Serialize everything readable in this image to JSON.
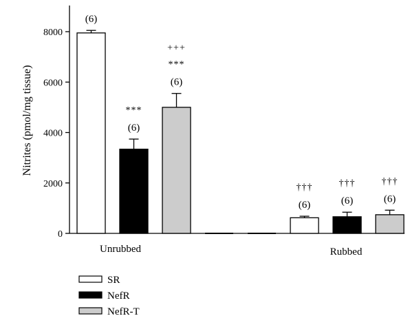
{
  "chart_data": {
    "type": "bar",
    "ylabel": "Nitrites (pmol/mg tissue)",
    "ylim": [
      0,
      10000
    ],
    "yticks": [
      0,
      2000,
      4000,
      6000,
      8000
    ],
    "groups": [
      "Unrubbed",
      "Rubbed"
    ],
    "series": [
      {
        "name": "SR",
        "color": "#ffffff"
      },
      {
        "name": "NefR",
        "color": "#000000"
      },
      {
        "name": "NefR-T",
        "color": "#cccccc"
      }
    ],
    "bars": [
      {
        "group": "Unrubbed",
        "series": "SR",
        "value": 7950,
        "error": 100,
        "n": "(6)",
        "marks": []
      },
      {
        "group": "Unrubbed",
        "series": "NefR",
        "value": 3340,
        "error": 400,
        "n": "(6)",
        "marks": [
          "***"
        ]
      },
      {
        "group": "Unrubbed",
        "series": "NefR-T",
        "value": 5000,
        "error": 550,
        "n": "(6)",
        "marks": [
          "+++",
          "***"
        ]
      },
      {
        "group": "Empty",
        "series": "blank",
        "value": 0,
        "error": 0,
        "n": "",
        "marks": []
      },
      {
        "group": "Empty",
        "series": "blank",
        "value": 0,
        "error": 0,
        "n": "",
        "marks": []
      },
      {
        "group": "Rubbed",
        "series": "SR",
        "value": 620,
        "error": 60,
        "n": "(6)",
        "marks": [
          "†††"
        ]
      },
      {
        "group": "Rubbed",
        "series": "NefR",
        "value": 660,
        "error": 180,
        "n": "(6)",
        "marks": [
          "†††"
        ]
      },
      {
        "group": "Rubbed",
        "series": "NefR-T",
        "value": 740,
        "error": 180,
        "n": "(6)",
        "marks": [
          "†††"
        ]
      }
    ]
  }
}
